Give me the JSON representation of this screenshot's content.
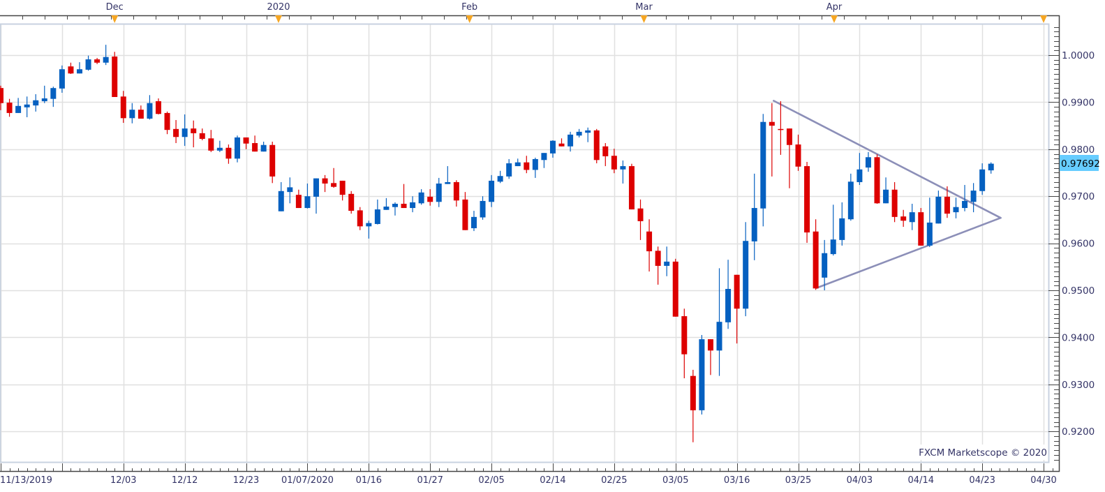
{
  "chart_data": {
    "type": "candlestick",
    "title": "",
    "colors": {
      "up": "#0560c0",
      "down": "#dd0000",
      "trendline": "#8c8fb8",
      "text": "#333366",
      "grid": "#e0e0e0",
      "last_price_bg": "#66ccff",
      "month_marker": "#f5a623"
    },
    "grid": true,
    "ylim": [
      0.9134,
      1.0068
    ],
    "y_ticks": [
      "1.0000",
      "0.9900",
      "0.9800",
      "0.9700",
      "0.9600",
      "0.9500",
      "0.9400",
      "0.9300",
      "0.9200"
    ],
    "last_price": "0.97692",
    "x_ticks": [
      {
        "bar": 0,
        "label": "11/13/2019"
      },
      {
        "bar": 7,
        "label": ""
      },
      {
        "bar": 14,
        "label": "12/03"
      },
      {
        "bar": 21,
        "label": "12/12"
      },
      {
        "bar": 28,
        "label": "12/23"
      },
      {
        "bar": 35,
        "label": "01/07/2020"
      },
      {
        "bar": 42,
        "label": "01/16"
      },
      {
        "bar": 49,
        "label": "01/27"
      },
      {
        "bar": 56,
        "label": "02/05"
      },
      {
        "bar": 63,
        "label": "02/14"
      },
      {
        "bar": 70,
        "label": "02/25"
      },
      {
        "bar": 77,
        "label": "03/05"
      },
      {
        "bar": 84,
        "label": "03/16"
      },
      {
        "bar": 91,
        "label": "03/25"
      },
      {
        "bar": 98,
        "label": "04/03"
      },
      {
        "bar": 105,
        "label": "04/14"
      },
      {
        "bar": 112,
        "label": "04/23"
      },
      {
        "bar": 119,
        "label": "04/30"
      }
    ],
    "month_markers": [
      {
        "bar": 13,
        "label": "Dec"
      },
      {
        "bar": 31.7,
        "label": "2020"
      },
      {
        "bar": 53.5,
        "label": "Feb"
      },
      {
        "bar": 73.4,
        "label": "Mar"
      },
      {
        "bar": 95.1,
        "label": "Apr"
      },
      {
        "bar": 119,
        "label": ""
      }
    ],
    "ohlc_fields": [
      "open",
      "high",
      "low",
      "close"
    ],
    "candles": [
      [
        0.993,
        0.9935,
        0.9883,
        0.9898
      ],
      [
        0.9899,
        0.9907,
        0.9869,
        0.9877
      ],
      [
        0.9877,
        0.9909,
        0.9877,
        0.9892
      ],
      [
        0.9889,
        0.9912,
        0.9868,
        0.9895
      ],
      [
        0.9893,
        0.9917,
        0.988,
        0.9904
      ],
      [
        0.9902,
        0.9935,
        0.9898,
        0.9908
      ],
      [
        0.9907,
        0.9933,
        0.989,
        0.993
      ],
      [
        0.9929,
        0.9978,
        0.992,
        0.997
      ],
      [
        0.9976,
        0.9984,
        0.996,
        0.9961
      ],
      [
        0.9961,
        0.9985,
        0.9961,
        0.997
      ],
      [
        0.9969,
        0.9999,
        0.9967,
        0.9991
      ],
      [
        0.9991,
        0.9994,
        0.9981,
        0.9984
      ],
      [
        0.9984,
        1.0022,
        0.9979,
        0.9996
      ],
      [
        0.9997,
        1.0007,
        0.9911,
        0.9911
      ],
      [
        0.9912,
        0.9924,
        0.9856,
        0.9866
      ],
      [
        0.9866,
        0.9898,
        0.9855,
        0.9884
      ],
      [
        0.9884,
        0.9893,
        0.9865,
        0.9865
      ],
      [
        0.9865,
        0.9915,
        0.9863,
        0.9898
      ],
      [
        0.9902,
        0.9908,
        0.9874,
        0.9875
      ],
      [
        0.9877,
        0.988,
        0.9832,
        0.9841
      ],
      [
        0.9843,
        0.9862,
        0.9813,
        0.9826
      ],
      [
        0.9826,
        0.9874,
        0.9807,
        0.9844
      ],
      [
        0.9844,
        0.9861,
        0.9804,
        0.9834
      ],
      [
        0.9834,
        0.9844,
        0.9819,
        0.9822
      ],
      [
        0.9823,
        0.9841,
        0.9794,
        0.9797
      ],
      [
        0.9797,
        0.9818,
        0.9794,
        0.9803
      ],
      [
        0.9803,
        0.981,
        0.9769,
        0.978
      ],
      [
        0.978,
        0.9829,
        0.9772,
        0.9825
      ],
      [
        0.9825,
        0.9825,
        0.98,
        0.9812
      ],
      [
        0.9813,
        0.9829,
        0.9795,
        0.9795
      ],
      [
        0.9795,
        0.9816,
        0.9795,
        0.9809
      ],
      [
        0.9809,
        0.9816,
        0.9728,
        0.9742
      ],
      [
        0.9668,
        0.973,
        0.9668,
        0.9711
      ],
      [
        0.9709,
        0.974,
        0.9685,
        0.9719
      ],
      [
        0.9703,
        0.9714,
        0.9675,
        0.9675
      ],
      [
        0.9675,
        0.9727,
        0.9674,
        0.97
      ],
      [
        0.9699,
        0.9738,
        0.9663,
        0.9738
      ],
      [
        0.9738,
        0.9745,
        0.9709,
        0.9727
      ],
      [
        0.9728,
        0.976,
        0.9718,
        0.972
      ],
      [
        0.9733,
        0.9733,
        0.9691,
        0.9703
      ],
      [
        0.9705,
        0.9711,
        0.9663,
        0.9669
      ],
      [
        0.967,
        0.9677,
        0.9628,
        0.9636
      ],
      [
        0.9636,
        0.9648,
        0.961,
        0.9643
      ],
      [
        0.9641,
        0.9693,
        0.964,
        0.9672
      ],
      [
        0.9671,
        0.9696,
        0.9671,
        0.9678
      ],
      [
        0.9677,
        0.9687,
        0.9659,
        0.9684
      ],
      [
        0.9684,
        0.9726,
        0.9675,
        0.9675
      ],
      [
        0.9675,
        0.97,
        0.9666,
        0.9687
      ],
      [
        0.9685,
        0.9715,
        0.9682,
        0.9708
      ],
      [
        0.9699,
        0.9715,
        0.968,
        0.9688
      ],
      [
        0.9688,
        0.9739,
        0.9677,
        0.9727
      ],
      [
        0.9726,
        0.9764,
        0.9726,
        0.973
      ],
      [
        0.973,
        0.9734,
        0.9678,
        0.9691
      ],
      [
        0.9693,
        0.9709,
        0.9628,
        0.9628
      ],
      [
        0.9632,
        0.9669,
        0.9626,
        0.9656
      ],
      [
        0.9655,
        0.97,
        0.965,
        0.969
      ],
      [
        0.9688,
        0.9745,
        0.9677,
        0.9733
      ],
      [
        0.9731,
        0.9754,
        0.9728,
        0.9743
      ],
      [
        0.9742,
        0.9779,
        0.9737,
        0.977
      ],
      [
        0.9764,
        0.978,
        0.9764,
        0.9772
      ],
      [
        0.9772,
        0.9786,
        0.9749,
        0.9756
      ],
      [
        0.9756,
        0.9782,
        0.9739,
        0.9779
      ],
      [
        0.9777,
        0.9792,
        0.976,
        0.9792
      ],
      [
        0.9791,
        0.9819,
        0.9782,
        0.9818
      ],
      [
        0.9812,
        0.9823,
        0.9806,
        0.9806
      ],
      [
        0.9806,
        0.9837,
        0.9795,
        0.9831
      ],
      [
        0.9829,
        0.9843,
        0.9825,
        0.9837
      ],
      [
        0.9835,
        0.9846,
        0.9815,
        0.984
      ],
      [
        0.984,
        0.9843,
        0.977,
        0.9777
      ],
      [
        0.9806,
        0.9813,
        0.9764,
        0.9785
      ],
      [
        0.9786,
        0.9801,
        0.9749,
        0.9757
      ],
      [
        0.9757,
        0.9776,
        0.9727,
        0.9764
      ],
      [
        0.9764,
        0.9769,
        0.9672,
        0.9672
      ],
      [
        0.9674,
        0.9693,
        0.9607,
        0.9647
      ],
      [
        0.9625,
        0.9651,
        0.954,
        0.9583
      ],
      [
        0.9584,
        0.9593,
        0.9512,
        0.9552
      ],
      [
        0.9552,
        0.9593,
        0.953,
        0.9561
      ],
      [
        0.9561,
        0.9567,
        0.9444,
        0.9444
      ],
      [
        0.9445,
        0.9461,
        0.9313,
        0.9364
      ],
      [
        0.9318,
        0.9331,
        0.9177,
        0.9245
      ],
      [
        0.9245,
        0.9405,
        0.9236,
        0.9396
      ],
      [
        0.9396,
        0.9396,
        0.932,
        0.9372
      ],
      [
        0.9372,
        0.9547,
        0.9318,
        0.9433
      ],
      [
        0.9432,
        0.9565,
        0.9418,
        0.9503
      ],
      [
        0.9533,
        0.9533,
        0.9387,
        0.9461
      ],
      [
        0.9461,
        0.9645,
        0.9445,
        0.9605
      ],
      [
        0.9604,
        0.9748,
        0.9564,
        0.9675
      ],
      [
        0.9674,
        0.9875,
        0.9636,
        0.9858
      ],
      [
        0.9858,
        0.9898,
        0.9742,
        0.985
      ],
      [
        0.9843,
        0.9902,
        0.9788,
        0.9842
      ],
      [
        0.9844,
        0.9844,
        0.9717,
        0.9809
      ],
      [
        0.981,
        0.9831,
        0.9754,
        0.9763
      ],
      [
        0.9764,
        0.9773,
        0.9601,
        0.9623
      ],
      [
        0.9625,
        0.9651,
        0.9501,
        0.9504
      ],
      [
        0.9527,
        0.9607,
        0.95,
        0.9579
      ],
      [
        0.9577,
        0.9682,
        0.9574,
        0.9608
      ],
      [
        0.9607,
        0.9687,
        0.9595,
        0.9653
      ],
      [
        0.9651,
        0.9748,
        0.9648,
        0.9731
      ],
      [
        0.973,
        0.9792,
        0.9724,
        0.9757
      ],
      [
        0.9761,
        0.9794,
        0.9752,
        0.9783
      ],
      [
        0.9783,
        0.9789,
        0.9684,
        0.9685
      ],
      [
        0.9685,
        0.974,
        0.9685,
        0.9714
      ],
      [
        0.9714,
        0.973,
        0.9645,
        0.9656
      ],
      [
        0.9657,
        0.9671,
        0.9635,
        0.9648
      ],
      [
        0.9645,
        0.9684,
        0.9628,
        0.9666
      ],
      [
        0.9666,
        0.9675,
        0.9595,
        0.9595
      ],
      [
        0.9595,
        0.9697,
        0.9592,
        0.9644
      ],
      [
        0.9642,
        0.9712,
        0.9642,
        0.9699
      ],
      [
        0.9699,
        0.9721,
        0.9654,
        0.9663
      ],
      [
        0.9666,
        0.9697,
        0.9653,
        0.9677
      ],
      [
        0.9675,
        0.9724,
        0.9668,
        0.969
      ],
      [
        0.9688,
        0.9728,
        0.9666,
        0.9712
      ],
      [
        0.9711,
        0.977,
        0.9703,
        0.9757
      ],
      [
        0.9755,
        0.9772,
        0.9748,
        0.97692
      ]
    ],
    "trendlines": [
      {
        "from": {
          "bar": 88.2,
          "price": 0.9903
        },
        "to": {
          "bar": 114.1,
          "price": 0.9654
        }
      },
      {
        "from": {
          "bar": 93.1,
          "price": 0.9505
        },
        "to": {
          "bar": 114.1,
          "price": 0.9654
        }
      }
    ],
    "watermark": "FXCM Marketscope © 2020"
  }
}
